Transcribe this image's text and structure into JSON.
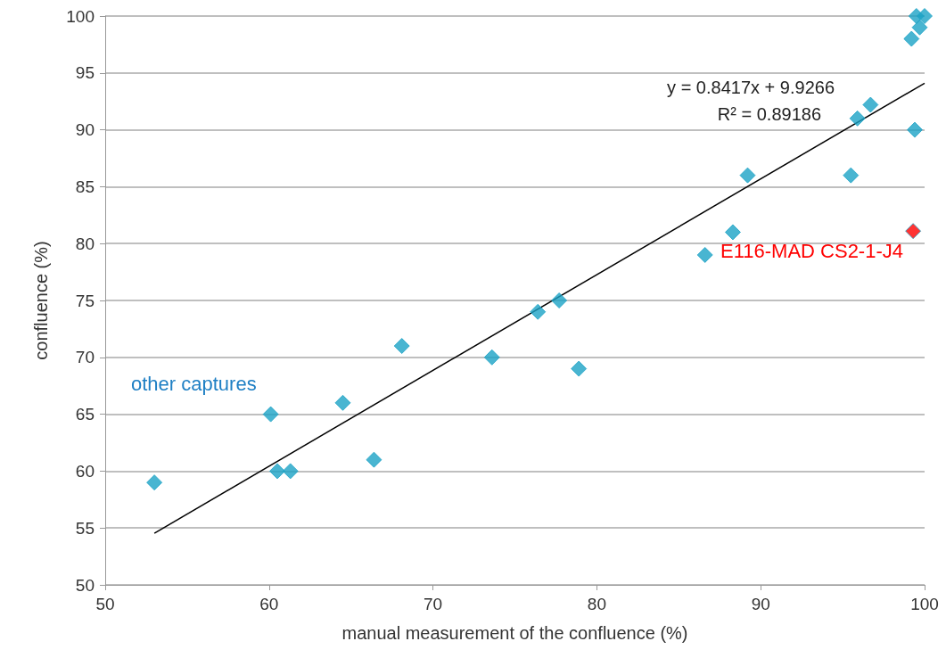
{
  "chart_data": {
    "type": "scatter",
    "xlabel": "manual measurement of the confluence (%)",
    "ylabel": "confluence (%)",
    "xlim": [
      50,
      100
    ],
    "xticks": [
      50,
      60,
      70,
      80,
      90,
      100
    ],
    "ylim": [
      50,
      100
    ],
    "yticks": [
      50,
      55,
      60,
      65,
      70,
      75,
      80,
      85,
      90,
      95,
      100
    ],
    "grid": "y",
    "marker": "diamond",
    "legend": false,
    "annotations": [
      "y = 0.8417x + 9.9266",
      "R² = 0.89186"
    ],
    "series": [
      {
        "name": "other captures",
        "color": "#1ba3c6",
        "x": [
          53.0,
          60.1,
          60.5,
          61.3,
          64.5,
          66.4,
          68.1,
          73.6,
          76.4,
          77.7,
          78.9,
          86.6,
          88.3,
          89.2,
          95.5,
          95.9,
          96.7,
          99.4,
          99.2,
          99.7,
          99.5,
          100
        ],
        "values": [
          59,
          65,
          60,
          60,
          66,
          61,
          71,
          70,
          74,
          75,
          69,
          79,
          81,
          86,
          86,
          91,
          92.2,
          90,
          98,
          99,
          100,
          100
        ]
      },
      {
        "name": "E116-MAD CS2-1-J4",
        "color": "#ff0000",
        "x": [
          99.3
        ],
        "values": [
          81.1
        ]
      },
      {
        "type": "line",
        "marker": "none",
        "color": "#000000",
        "x": [
          53.0,
          100
        ],
        "values": [
          54.54,
          94.1
        ]
      }
    ]
  }
}
